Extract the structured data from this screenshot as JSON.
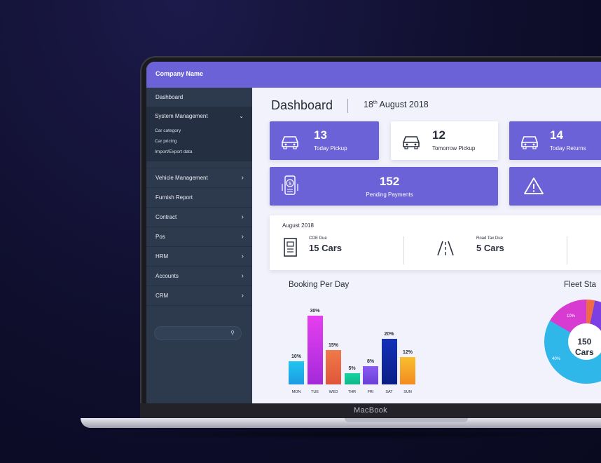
{
  "app": {
    "company_name": "Company Name",
    "device_label": "MacBook"
  },
  "sidebar": {
    "dashboard": "Dashboard",
    "system_management": {
      "label": "System Management",
      "children": [
        "Car category",
        "Car pricing",
        "Import/Export data"
      ]
    },
    "items": [
      "Vehicle Management",
      "Furnish Report",
      "Contract",
      "Pos",
      "HRM",
      "Accounts",
      "CRM"
    ]
  },
  "header": {
    "title": "Dashboard",
    "date_day": "18",
    "date_suffix": "th",
    "date_rest": " August 2018"
  },
  "cards": {
    "today_pickup": {
      "value": "13",
      "label": "Today Pickup"
    },
    "tomorrow_pickup": {
      "value": "12",
      "label": "Tomorrow Pickup"
    },
    "today_returns": {
      "value": "14",
      "label": "Today Returns"
    },
    "pending_payments": {
      "value": "152",
      "label": "Pending Payments"
    }
  },
  "month_panel": {
    "title": "August 2018",
    "coe_label": "COE Due",
    "coe_value": "15 Cars",
    "road_tax_label": "Road Tax Due",
    "road_tax_value": "5 Cars"
  },
  "booking": {
    "title": "Booking Per Day"
  },
  "fleet": {
    "title": "Fleet Sta",
    "center_value": "150",
    "center_label": "Cars",
    "slice_a": "10%",
    "slice_b": "40%"
  },
  "colors": {
    "primary": "#6a62d6",
    "sidebar": "#2d3a4d"
  },
  "chart_data": {
    "type": "bar",
    "title": "Booking Per Day",
    "categories": [
      "MON",
      "TUE",
      "WED",
      "THR",
      "FRI",
      "SAT",
      "SUN"
    ],
    "values": [
      10,
      30,
      15,
      5,
      8,
      20,
      12
    ],
    "value_labels": [
      "10%",
      "30%",
      "15%",
      "5%",
      "8%",
      "20%",
      "12%"
    ],
    "ylim": [
      0,
      30
    ],
    "grid": false
  }
}
